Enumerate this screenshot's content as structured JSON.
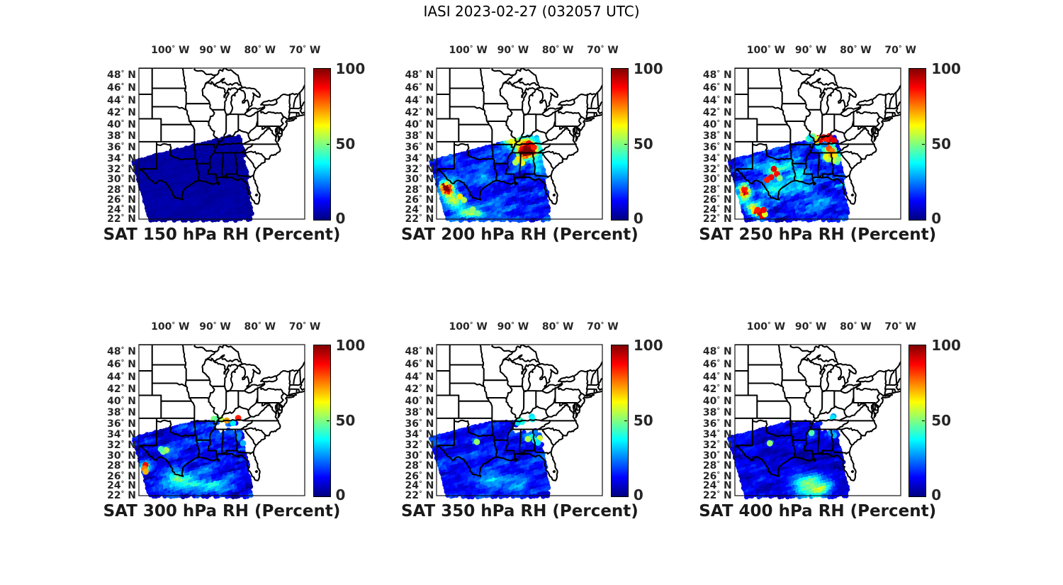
{
  "figure": {
    "title": "IASI 2023-02-27 (032057 UTC)",
    "instrument": "IASI",
    "date": "2023-02-27",
    "time_utc": "032057"
  },
  "axes": {
    "projection": "mercator",
    "lon_range": [
      -107,
      -70
    ],
    "lat_range": [
      22,
      49
    ],
    "lon_tick_labels": [
      "100° W",
      "90° W",
      "80° W",
      "70° W"
    ],
    "lon_tick_values": [
      -100,
      -90,
      -80,
      -70
    ],
    "lat_tick_labels": [
      "48° N",
      "46° N",
      "44° N",
      "42° N",
      "40° N",
      "38° N",
      "36° N",
      "34° N",
      "32° N",
      "30° N",
      "28° N",
      "26° N",
      "24° N",
      "22° N"
    ],
    "lat_tick_values": [
      48,
      46,
      44,
      42,
      40,
      38,
      36,
      34,
      32,
      30,
      28,
      26,
      24,
      22
    ]
  },
  "colorbar": {
    "tick_labels": [
      "100",
      "50",
      "0"
    ],
    "tick_values": [
      100,
      50,
      0
    ],
    "range": [
      0,
      100
    ],
    "colormap": "jet",
    "color_low": "#000080",
    "color_high": "#800000"
  },
  "chart_data": {
    "type": "heatmap",
    "subtype": "satellite-swath-scatter-maps",
    "title": "IASI 2023-02-27 (032057 UTC)",
    "units": "Percent relative humidity",
    "value_range": [
      0,
      100
    ],
    "panels": [
      {
        "title": "SAT 150 hPa RH (Percent)",
        "pressure_hPa": 150,
        "row": 0,
        "col": 0,
        "base_rh": 3.5,
        "texture": 0.8,
        "swath": "row1",
        "features": [],
        "outlier_points": [],
        "holes": []
      },
      {
        "title": "SAT 200 hPa RH (Percent)",
        "pressure_hPa": 200,
        "row": 0,
        "col": 1,
        "base_rh": 15,
        "texture": 6,
        "swath": "row1",
        "features": [
          [
            -86.3,
            35.4,
            1.7,
            1.1,
            90
          ],
          [
            -87.2,
            34.9,
            1.3,
            0.9,
            60
          ],
          [
            -86.6,
            35.7,
            3.0,
            1.7,
            30
          ],
          [
            -88.0,
            37.1,
            2.8,
            1.0,
            28
          ],
          [
            -90.8,
            37.0,
            1.8,
            0.8,
            24
          ],
          [
            -84.3,
            32.6,
            1.4,
            1.4,
            24
          ],
          [
            -88.3,
            33.8,
            1.2,
            0.8,
            26
          ],
          [
            -104.3,
            27.9,
            1.3,
            1.3,
            88
          ],
          [
            -105.4,
            28.6,
            0.8,
            0.9,
            60
          ],
          [
            -102.9,
            25.6,
            1.6,
            1.2,
            42
          ],
          [
            -100.2,
            23.3,
            2.6,
            1.0,
            30
          ],
          [
            -97.5,
            22.8,
            2.2,
            0.9,
            22
          ],
          [
            -96.2,
            30.6,
            1.4,
            1.0,
            14
          ],
          [
            -93.0,
            25.0,
            3.0,
            1.5,
            8
          ]
        ],
        "outlier_points": [
          [
            -85.8,
            36.4,
            95
          ],
          [
            -86.4,
            36.7,
            90
          ],
          [
            -85.3,
            36.0,
            85
          ],
          [
            -88.8,
            33.8,
            65
          ],
          [
            -89.4,
            33.2,
            55
          ],
          [
            -87.9,
            33.1,
            60
          ],
          [
            -101.8,
            26.6,
            65
          ],
          [
            -100.9,
            25.9,
            55
          ],
          [
            -98.9,
            24.0,
            52
          ],
          [
            -97.8,
            23.2,
            48
          ]
        ],
        "holes": []
      },
      {
        "title": "SAT 250 hPa RH (Percent)",
        "pressure_hPa": 250,
        "row": 0,
        "col": 2,
        "base_rh": 17,
        "texture": 8,
        "swath": "row1",
        "features": [
          [
            -86.4,
            36.3,
            1.5,
            0.9,
            55
          ],
          [
            -85.6,
            34.7,
            1.6,
            1.0,
            48
          ],
          [
            -104.7,
            27.4,
            1.2,
            1.3,
            88
          ],
          [
            -102.0,
            23.3,
            1.3,
            0.9,
            55
          ],
          [
            -103.0,
            24.3,
            1.8,
            0.9,
            42
          ],
          [
            -97.9,
            31.5,
            1.4,
            1.1,
            26
          ],
          [
            -95.5,
            33.0,
            2.2,
            1.2,
            18
          ],
          [
            -98.5,
            27.5,
            2.6,
            1.6,
            16
          ],
          [
            -92.5,
            28.8,
            2.6,
            1.6,
            14
          ],
          [
            -88.0,
            25.0,
            2.0,
            1.2,
            8
          ],
          [
            -99.0,
            32.0,
            2.8,
            1.6,
            16
          ],
          [
            -94.0,
            29.5,
            3.2,
            2.0,
            12
          ]
        ],
        "outlier_points": [
          [
            -86.1,
            37.7,
            97
          ],
          [
            -85.5,
            37.35,
            95
          ],
          [
            -86.9,
            37.5,
            92
          ],
          [
            -86.3,
            36.9,
            96
          ],
          [
            -87.7,
            37.2,
            93
          ],
          [
            -88.6,
            37.65,
            88
          ],
          [
            -85.2,
            36.5,
            40
          ],
          [
            -87.3,
            37.0,
            62
          ],
          [
            -88.2,
            37.45,
            58
          ],
          [
            -89.2,
            37.7,
            58
          ],
          [
            -89.85,
            37.45,
            28
          ],
          [
            -90.6,
            37.5,
            45
          ],
          [
            -87.8,
            36.35,
            30
          ],
          [
            -84.9,
            34.9,
            68
          ],
          [
            -85.6,
            34.2,
            72
          ],
          [
            -84.5,
            34.0,
            60
          ],
          [
            -86.2,
            33.8,
            55
          ],
          [
            -84.2,
            33.3,
            45
          ],
          [
            -84.9,
            35.6,
            50
          ],
          [
            -98.3,
            32.0,
            90
          ],
          [
            -97.6,
            31.0,
            86
          ],
          [
            -98.9,
            30.4,
            88
          ],
          [
            -97.0,
            30.2,
            50
          ],
          [
            -99.8,
            29.9,
            85
          ],
          [
            -101.4,
            23.3,
            92
          ],
          [
            -100.9,
            22.6,
            90
          ],
          [
            -101.9,
            23.9,
            85
          ],
          [
            -100.3,
            23.0,
            60
          ],
          [
            -100.6,
            23.9,
            88
          ],
          [
            -87.2,
            37.8,
            95
          ],
          [
            -88.0,
            37.0,
            90
          ],
          [
            -85.9,
            38.0,
            88
          ],
          [
            -84.9,
            37.2,
            90
          ],
          [
            -86.55,
            37.25,
            85
          ],
          [
            -89.6,
            38.0,
            50
          ],
          [
            -90.2,
            37.8,
            35
          ],
          [
            -88.9,
            36.9,
            70
          ],
          [
            -86.0,
            35.8,
            80
          ],
          [
            -85.3,
            35.3,
            75
          ],
          [
            -84.7,
            34.4,
            65
          ],
          [
            -86.7,
            34.2,
            60
          ],
          [
            -83.9,
            33.8,
            50
          ],
          [
            -85.0,
            33.5,
            55
          ],
          [
            -87.0,
            36.5,
            25
          ],
          [
            -88.4,
            36.2,
            35
          ]
        ],
        "holes": []
      },
      {
        "title": "SAT 300 hPa RH (Percent)",
        "pressure_hPa": 300,
        "row": 1,
        "col": 0,
        "base_rh": 13,
        "texture": 6.5,
        "swath": "row2",
        "features": [
          [
            -95.5,
            24.3,
            4.8,
            1.7,
            22
          ],
          [
            -89.5,
            23.5,
            2.4,
            1.3,
            24
          ],
          [
            -99.5,
            26.3,
            2.6,
            1.2,
            12
          ],
          [
            -105.3,
            27.7,
            0.8,
            1.0,
            40
          ],
          [
            -101.2,
            31.0,
            1.2,
            0.7,
            24
          ],
          [
            -87.6,
            36.2,
            1.6,
            0.9,
            22
          ],
          [
            -91.8,
            27.0,
            2.2,
            1.2,
            10
          ],
          [
            -102.5,
            33.9,
            2.2,
            1.4,
            -7
          ],
          [
            -99.5,
            25.8,
            3.0,
            1.2,
            12
          ]
        ],
        "outlier_points": [
          [
            -84.85,
            37.05,
            85
          ],
          [
            -87.4,
            36.6,
            72
          ],
          [
            -88.6,
            36.8,
            56
          ],
          [
            -90.3,
            36.9,
            50
          ],
          [
            -89.5,
            36.95,
            46
          ],
          [
            -86.0,
            36.15,
            36
          ],
          [
            -84.65,
            33.95,
            26
          ],
          [
            -84.95,
            33.45,
            26
          ],
          [
            -83.75,
            32.4,
            30
          ],
          [
            -105.55,
            28.2,
            88
          ],
          [
            -105.75,
            27.5,
            76
          ],
          [
            -105.5,
            26.9,
            70
          ],
          [
            -100.9,
            31.1,
            55
          ],
          [
            -101.6,
            30.8,
            50
          ],
          [
            -102.1,
            31.3,
            45
          ]
        ],
        "holes": [
          [
            -88.6,
            35.3,
            1.6,
            0.9
          ],
          [
            -85.6,
            35.3,
            1.2,
            0.8
          ]
        ]
      },
      {
        "title": "SAT 350 hPa RH (Percent)",
        "pressure_hPa": 350,
        "row": 1,
        "col": 1,
        "base_rh": 13,
        "texture": 5.5,
        "swath": "row2",
        "features": [
          [
            -94.5,
            24.6,
            4.2,
            1.7,
            17
          ],
          [
            -88.5,
            24.0,
            2.2,
            1.2,
            15
          ],
          [
            -86.0,
            33.3,
            1.5,
            0.9,
            20
          ],
          [
            -98.2,
            32.6,
            0.8,
            0.5,
            25
          ],
          [
            -92.5,
            29.5,
            2.0,
            1.2,
            9
          ]
        ],
        "outlier_points": [
          [
            -85.75,
            37.3,
            35
          ],
          [
            -85.6,
            36.85,
            38
          ],
          [
            -88.4,
            36.7,
            45
          ],
          [
            -87.9,
            36.35,
            40
          ],
          [
            -88.9,
            36.2,
            35
          ],
          [
            -86.6,
            33.2,
            55
          ],
          [
            -84.0,
            33.35,
            58
          ],
          [
            -85.0,
            32.9,
            40
          ],
          [
            -84.4,
            32.5,
            35
          ],
          [
            -98.0,
            32.65,
            52
          ]
        ],
        "holes": [
          [
            -86.9,
            35.5,
            2.3,
            1.1
          ],
          [
            -89.3,
            34.9,
            1.1,
            0.7
          ]
        ]
      },
      {
        "title": "SAT 400 hPa RH (Percent)",
        "pressure_hPa": 400,
        "row": 1,
        "col": 2,
        "base_rh": 9,
        "texture": 5,
        "swath": "row2",
        "features": [
          [
            -90.0,
            23.4,
            3.2,
            1.8,
            38
          ],
          [
            -87.4,
            23.2,
            2.1,
            1.4,
            24
          ],
          [
            -86.1,
            24.1,
            1.5,
            1.2,
            16
          ],
          [
            -91.6,
            25.2,
            2.4,
            1.5,
            16
          ],
          [
            -88.7,
            25.8,
            1.6,
            1.1,
            12
          ],
          [
            -85.5,
            34.0,
            1.5,
            1.0,
            14
          ],
          [
            -99.2,
            32.4,
            0.7,
            0.45,
            28
          ],
          [
            -89.9,
            34.3,
            0.8,
            0.6,
            22
          ]
        ],
        "outlier_points": [
          [
            -85.0,
            37.35,
            28
          ],
          [
            -85.15,
            37.1,
            35
          ],
          [
            -89.9,
            34.35,
            45
          ],
          [
            -99.2,
            32.4,
            52
          ],
          [
            -84.9,
            33.9,
            30
          ],
          [
            -85.6,
            34.4,
            28
          ]
        ],
        "holes": [
          [
            -86.3,
            35.4,
            1.9,
            1.0
          ]
        ]
      }
    ]
  }
}
